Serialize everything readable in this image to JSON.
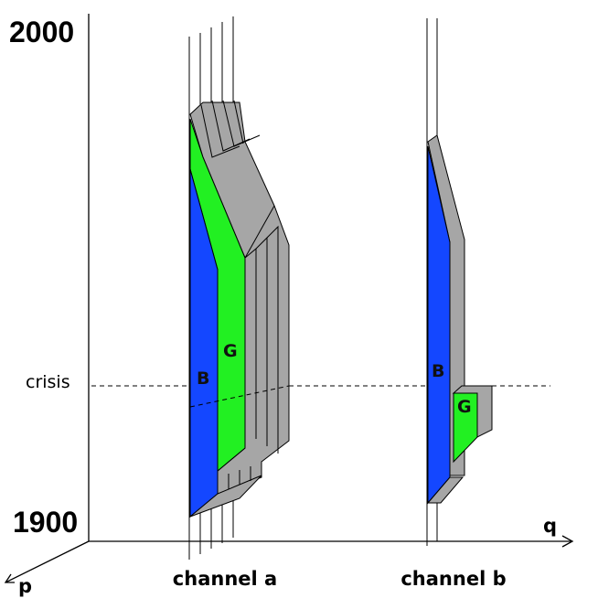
{
  "axis": {
    "y_top": "2000",
    "y_bottom": "1900",
    "x_label": "q",
    "depth_label": "p",
    "marker": "crisis"
  },
  "channels": [
    {
      "label": "channel a",
      "regions": [
        "B",
        "G"
      ]
    },
    {
      "label": "channel b",
      "regions": [
        "B",
        "G"
      ]
    }
  ]
}
